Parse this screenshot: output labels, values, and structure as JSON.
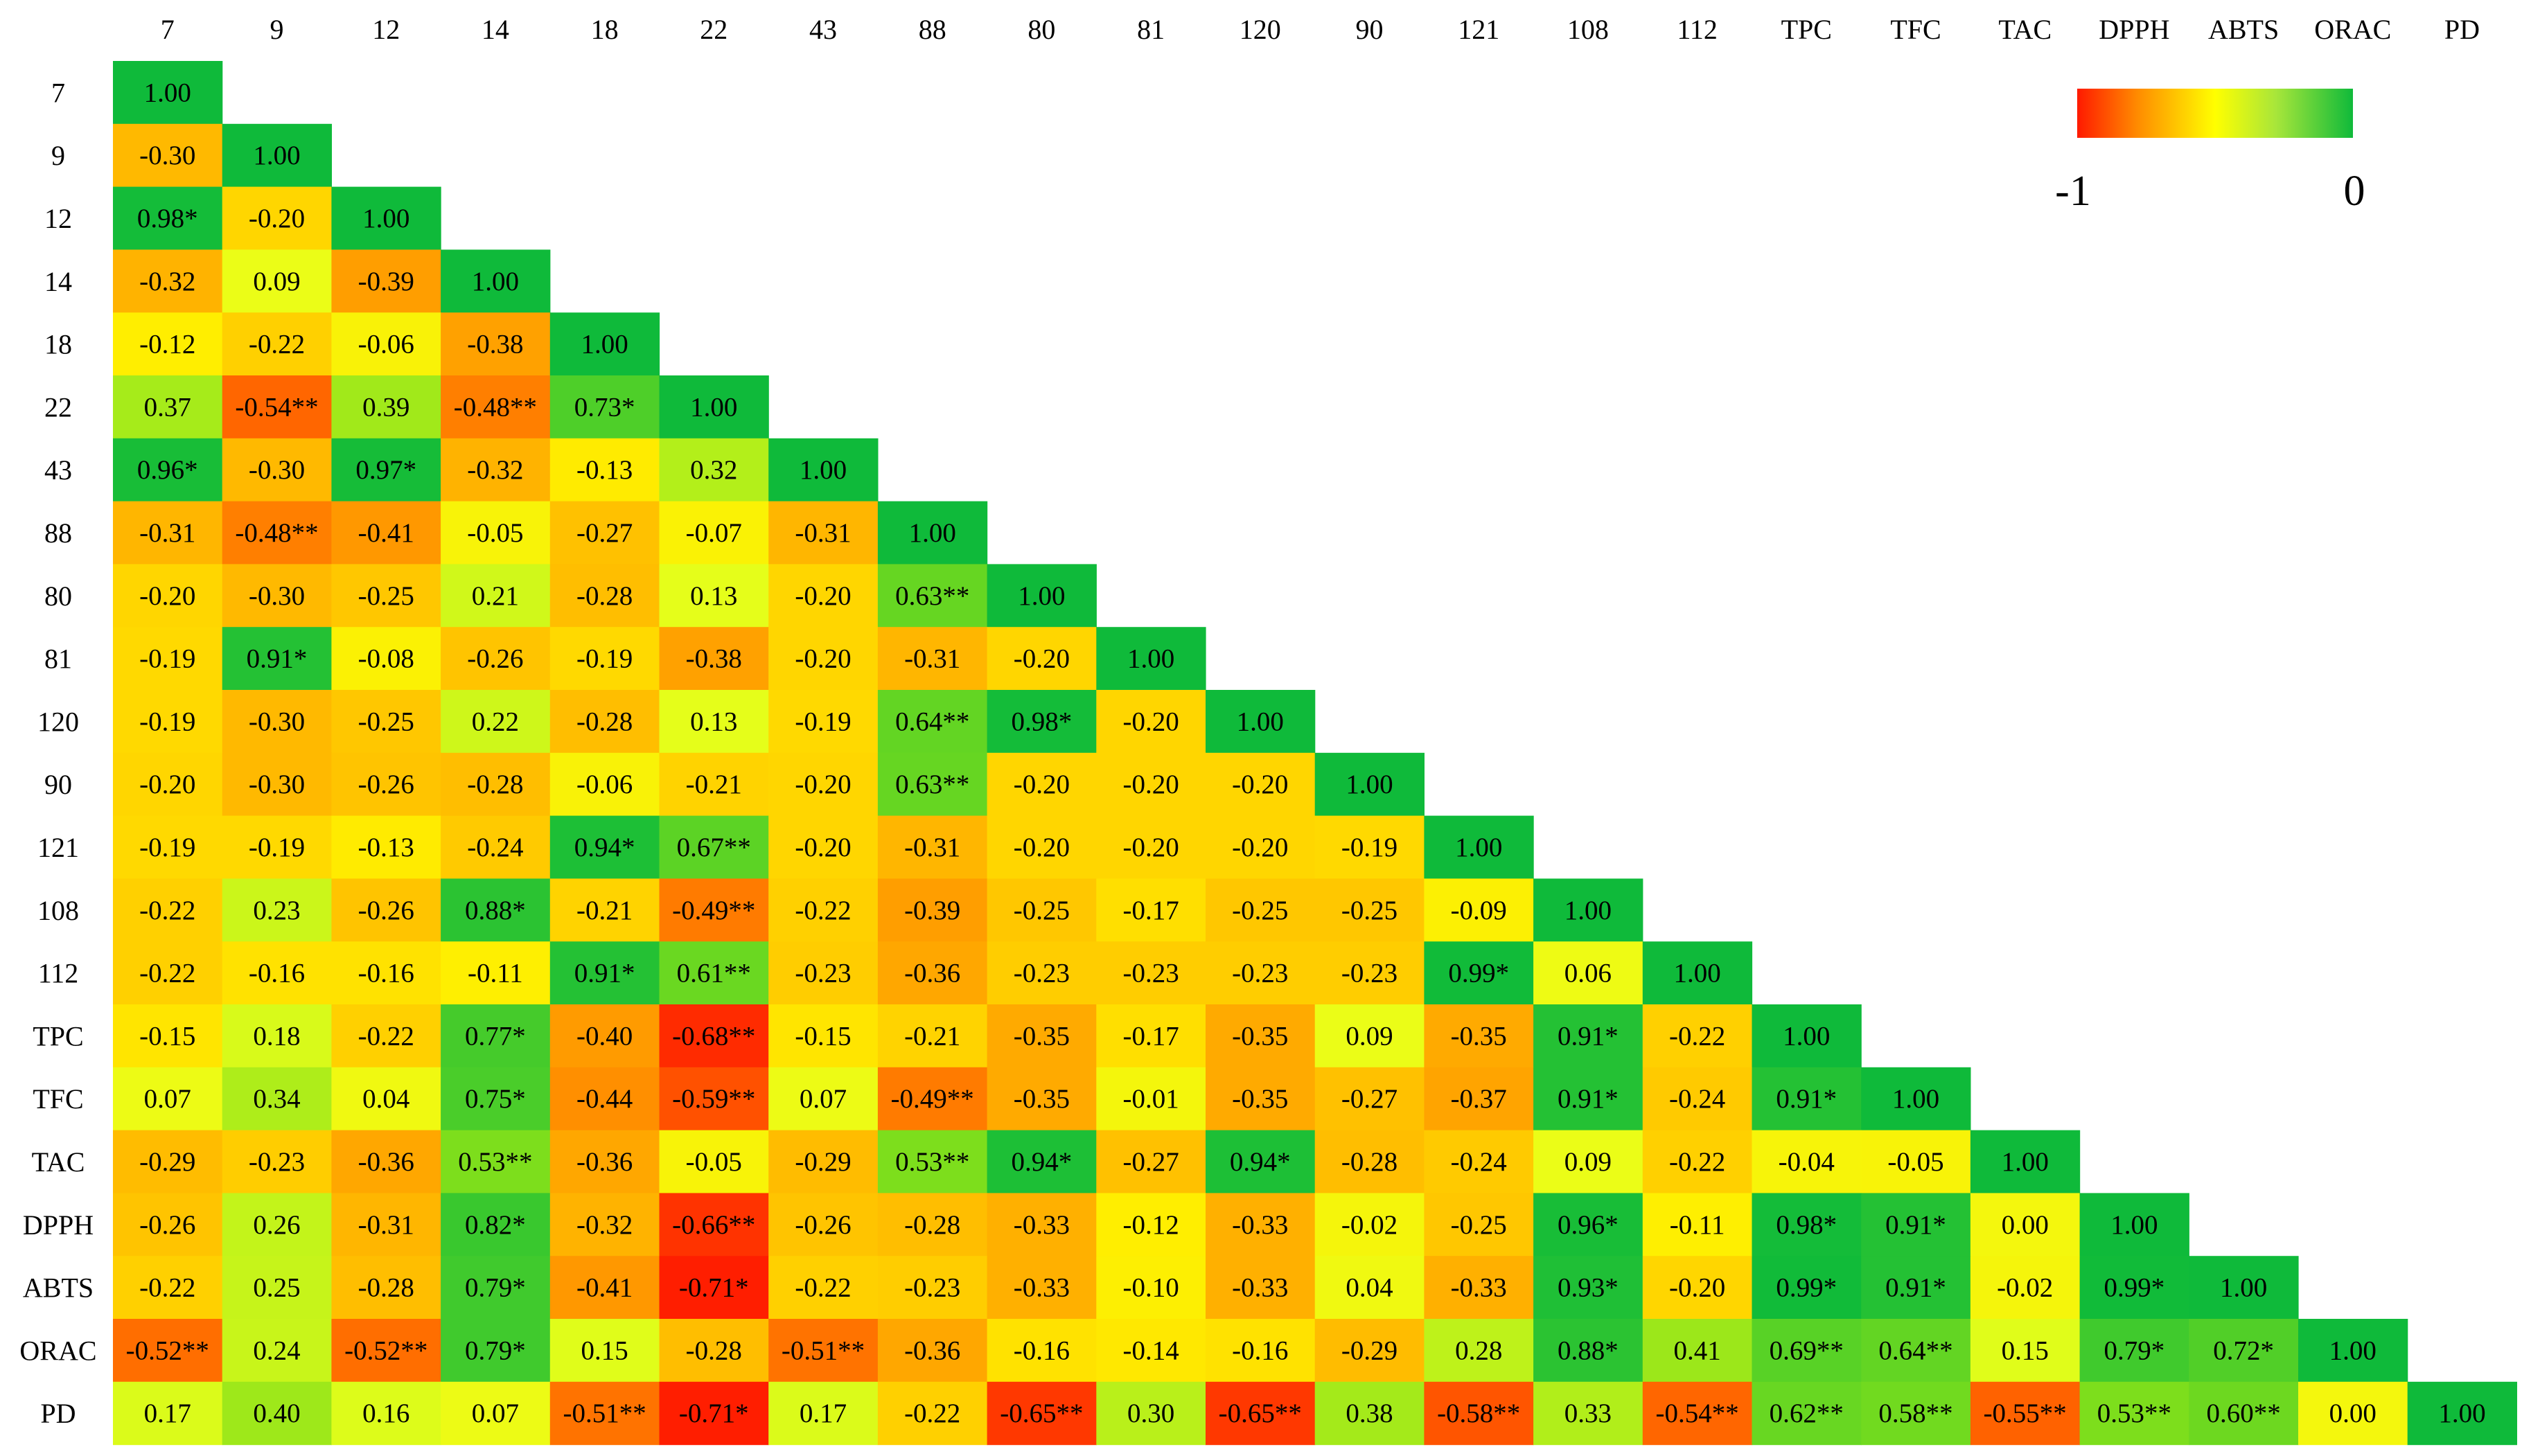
{
  "chart_data": {
    "type": "heatmap",
    "title": "",
    "xlabel": "",
    "ylabel": "",
    "categories": [
      "7",
      "9",
      "12",
      "14",
      "18",
      "22",
      "43",
      "88",
      "80",
      "81",
      "120",
      "90",
      "121",
      "108",
      "112",
      "TPC",
      "TFC",
      "TAC",
      "DPPH",
      "ABTS",
      "ORAC",
      "PD"
    ],
    "cells": [
      [
        "1.00"
      ],
      [
        "-0.30",
        "1.00"
      ],
      [
        "0.98*",
        "-0.20",
        "1.00"
      ],
      [
        "-0.32",
        "0.09",
        "-0.39",
        "1.00"
      ],
      [
        "-0.12",
        "-0.22",
        "-0.06",
        "-0.38",
        "1.00"
      ],
      [
        "0.37",
        "-0.54**",
        "0.39",
        "-0.48**",
        "0.73*",
        "1.00"
      ],
      [
        "0.96*",
        "-0.30",
        "0.97*",
        "-0.32",
        "-0.13",
        "0.32",
        "1.00"
      ],
      [
        "-0.31",
        "-0.48**",
        "-0.41",
        "-0.05",
        "-0.27",
        "-0.07",
        "-0.31",
        "1.00"
      ],
      [
        "-0.20",
        "-0.30",
        "-0.25",
        "0.21",
        "-0.28",
        "0.13",
        "-0.20",
        "0.63**",
        "1.00"
      ],
      [
        "-0.19",
        "0.91*",
        "-0.08",
        "-0.26",
        "-0.19",
        "-0.38",
        "-0.20",
        "-0.31",
        "-0.20",
        "1.00"
      ],
      [
        "-0.19",
        "-0.30",
        "-0.25",
        "0.22",
        "-0.28",
        "0.13",
        "-0.19",
        "0.64**",
        "0.98*",
        "-0.20",
        "1.00"
      ],
      [
        "-0.20",
        "-0.30",
        "-0.26",
        "-0.28",
        "-0.06",
        "-0.21",
        "-0.20",
        "0.63**",
        "-0.20",
        "-0.20",
        "-0.20",
        "1.00"
      ],
      [
        "-0.19",
        "-0.19",
        "-0.13",
        "-0.24",
        "0.94*",
        "0.67**",
        "-0.20",
        "-0.31",
        "-0.20",
        "-0.20",
        "-0.20",
        "-0.19",
        "1.00"
      ],
      [
        "-0.22",
        "0.23",
        "-0.26",
        "0.88*",
        "-0.21",
        "-0.49**",
        "-0.22",
        "-0.39",
        "-0.25",
        "-0.17",
        "-0.25",
        "-0.25",
        "-0.09",
        "1.00"
      ],
      [
        "-0.22",
        "-0.16",
        "-0.16",
        "-0.11",
        "0.91*",
        "0.61**",
        "-0.23",
        "-0.36",
        "-0.23",
        "-0.23",
        "-0.23",
        "-0.23",
        "0.99*",
        "0.06",
        "1.00"
      ],
      [
        "-0.15",
        "0.18",
        "-0.22",
        "0.77*",
        "-0.40",
        "-0.68**",
        "-0.15",
        "-0.21",
        "-0.35",
        "-0.17",
        "-0.35",
        "0.09",
        "-0.35",
        "0.91*",
        "-0.22",
        "1.00"
      ],
      [
        "0.07",
        "0.34",
        "0.04",
        "0.75*",
        "-0.44",
        "-0.59**",
        "0.07",
        "-0.49**",
        "-0.35",
        "-0.01",
        "-0.35",
        "-0.27",
        "-0.37",
        "0.91*",
        "-0.24",
        "0.91*",
        "1.00"
      ],
      [
        "-0.29",
        "-0.23",
        "-0.36",
        "0.53**",
        "-0.36",
        "-0.05",
        "-0.29",
        "0.53**",
        "0.94*",
        "-0.27",
        "0.94*",
        "-0.28",
        "-0.24",
        "0.09",
        "-0.22",
        "-0.04",
        "-0.05",
        "1.00"
      ],
      [
        "-0.26",
        "0.26",
        "-0.31",
        "0.82*",
        "-0.32",
        "-0.66**",
        "-0.26",
        "-0.28",
        "-0.33",
        "-0.12",
        "-0.33",
        "-0.02",
        "-0.25",
        "0.96*",
        "-0.11",
        "0.98*",
        "0.91*",
        "0.00",
        "1.00"
      ],
      [
        "-0.22",
        "0.25",
        "-0.28",
        "0.79*",
        "-0.41",
        "-0.71*",
        "-0.22",
        "-0.23",
        "-0.33",
        "-0.10",
        "-0.33",
        "0.04",
        "-0.33",
        "0.93*",
        "-0.20",
        "0.99*",
        "0.91*",
        "-0.02",
        "0.99*",
        "1.00"
      ],
      [
        "-0.52**",
        "0.24",
        "-0.52**",
        "0.79*",
        "0.15",
        "-0.28",
        "-0.51**",
        "-0.36",
        "-0.16",
        "-0.14",
        "-0.16",
        "-0.29",
        "0.28",
        "0.88*",
        "0.41",
        "0.69**",
        "0.64**",
        "0.15",
        "0.79*",
        "0.72*",
        "1.00"
      ],
      [
        "0.17",
        "0.40",
        "0.16",
        "0.07",
        "-0.51**",
        "-0.71*",
        "0.17",
        "-0.22",
        "-0.65**",
        "0.30",
        "-0.65**",
        "0.38",
        "-0.58**",
        "0.33",
        "-0.54**",
        "0.62**",
        "0.58**",
        "-0.55**",
        "0.53**",
        "0.60**",
        "0.00",
        "1.00"
      ]
    ],
    "color_scale": {
      "labels": [
        "-1",
        "0"
      ],
      "colors": [
        "#ff1a00",
        "#ff8c00",
        "#ffee00",
        "#e8ff1a",
        "#84e01a",
        "#0fba3a"
      ]
    },
    "legend_placement": "top-right",
    "grid": false
  }
}
